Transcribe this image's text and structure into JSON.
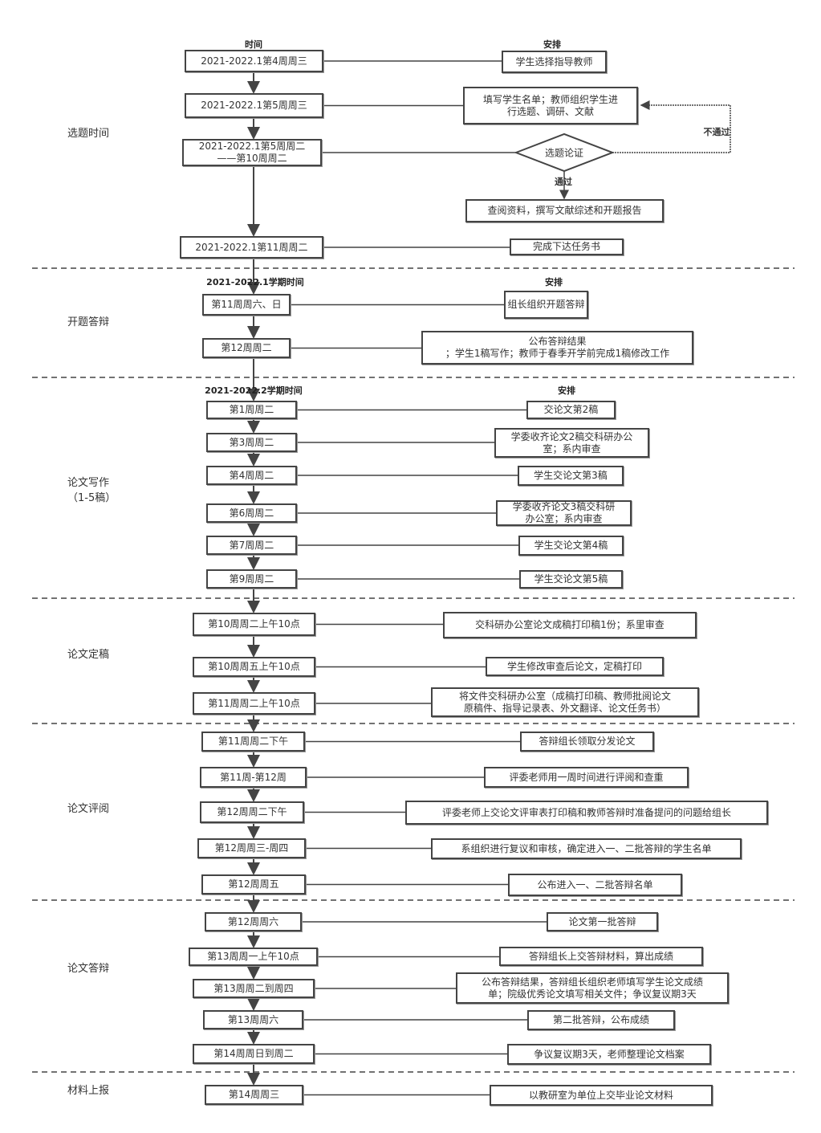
{
  "sections": [
    {
      "label": "选题时间",
      "header_time": "时间",
      "header_arrange": "安排",
      "rows": [
        {
          "time": "2021-2022.1第4周周三",
          "arrange": "学生选择指导教师"
        },
        {
          "time": "2021-2022.1第5周周三",
          "arrange": "填写学生名单；教师组织学生进\n行选题、调研、文献"
        },
        {
          "time": "2021-2022.1第5周周二\n——第10周周二",
          "arrange": "选题论证"
        },
        {
          "time": "2021-2022.1第11周周二",
          "arrange": "完成下达任务书"
        }
      ],
      "decision": {
        "fail_label": "不通过",
        "pass_label": "通过",
        "pass_result": "查阅资料，撰写文献综述和开题报告"
      }
    },
    {
      "label": "开题答辩",
      "header_time": "2021-2022.1学期时间",
      "header_arrange": "安排",
      "rows": [
        {
          "time": "第11周周六、日",
          "arrange": "组长组织开题答辩"
        },
        {
          "time": "第12周周二",
          "arrange": "公布答辩结果\n；学生1稿写作；教师于春季开学前完成1稿修改工作"
        }
      ]
    },
    {
      "label": "论文写作\n（1-5稿）",
      "header_time": "2021-2022.2学期时间",
      "header_arrange": "安排",
      "rows": [
        {
          "time": "第1周周二",
          "arrange": "交论文第2稿"
        },
        {
          "time": "第3周周二",
          "arrange": "学委收齐论文2稿交科研办公\n室；系内审查"
        },
        {
          "time": "第4周周二",
          "arrange": "学生交论文第3稿"
        },
        {
          "time": "第6周周二",
          "arrange": "学委收齐论文3稿交科研\n办公室；系内审查"
        },
        {
          "time": "第7周周二",
          "arrange": "学生交论文第4稿"
        },
        {
          "time": "第9周周二",
          "arrange": "学生交论文第5稿"
        }
      ]
    },
    {
      "label": "论文定稿",
      "rows": [
        {
          "time": "第10周周二上午10点",
          "arrange": "交科研办公室论文成稿打印稿1份；系里审查"
        },
        {
          "time": "第10周周五上午10点",
          "arrange": "学生修改审查后论文，定稿打印"
        },
        {
          "time": "第11周周二上午10点",
          "arrange": "将文件交科研办公室（成稿打印稿、教师批阅论文\n原稿件、指导记录表、外文翻译、论文任务书）"
        }
      ]
    },
    {
      "label": "论文评阅",
      "rows": [
        {
          "time": "第11周周二下午",
          "arrange": "答辩组长领取分发论文"
        },
        {
          "time": "第11周-第12周",
          "arrange": "评委老师用一周时间进行评阅和查重"
        },
        {
          "time": "第12周周二下午",
          "arrange": "评委老师上交论文评审表打印稿和教师答辩时准备提问的问题给组长"
        },
        {
          "time": "第12周周三-周四",
          "arrange": "系组织进行复议和审核，确定进入一、二批答辩的学生名单"
        },
        {
          "time": "第12周周五",
          "arrange": "公布进入一、二批答辩名单"
        }
      ]
    },
    {
      "label": "论文答辩",
      "rows": [
        {
          "time": "第12周周六",
          "arrange": "论文第一批答辩"
        },
        {
          "time": "第13周周一上午10点",
          "arrange": "答辩组长上交答辩材料，算出成绩"
        },
        {
          "time": "第13周周二到周四",
          "arrange": "公布答辩结果，答辩组长组织老师填写学生论文成绩\n单；院级优秀论文填写相关文件；争议复议期3天"
        },
        {
          "time": "第13周周六",
          "arrange": "第二批答辩，公布成绩"
        },
        {
          "time": "第14周周日到周二",
          "arrange": "争议复议期3天，老师整理论文档案"
        }
      ]
    },
    {
      "label": "材料上报",
      "rows": [
        {
          "time": "第14周周三",
          "arrange": "以教研室为单位上交毕业论文材料"
        }
      ]
    }
  ],
  "colors": {
    "line": "#444444",
    "box_border": "#444444",
    "text": "#333333"
  }
}
